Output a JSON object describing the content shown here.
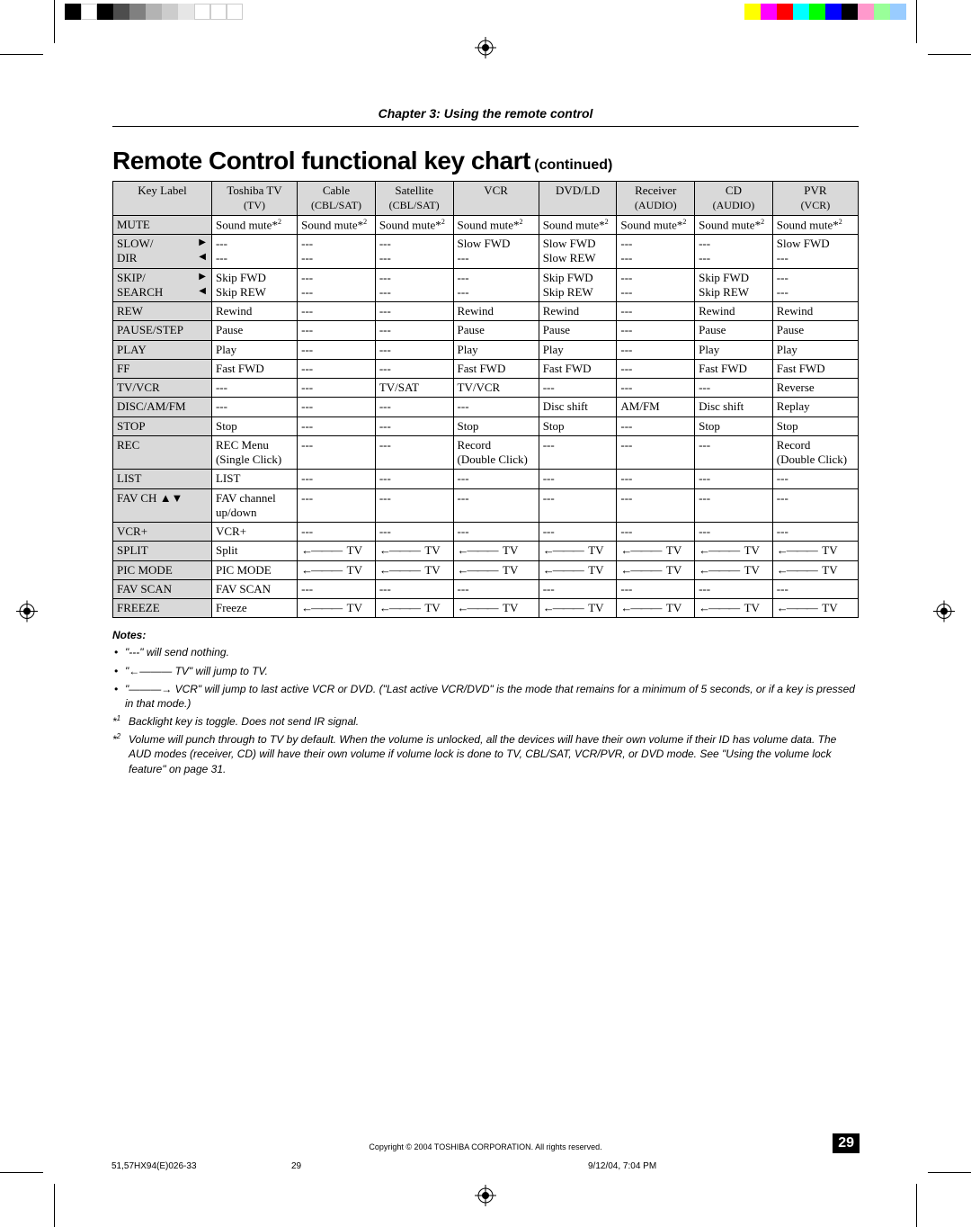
{
  "colorbar_left": [
    "#000000",
    "#ffffff",
    "#000000",
    "#4d4d4d",
    "#808080",
    "#b3b3b3",
    "#cccccc",
    "#e6e6e6",
    "#ffffff",
    "#ffffff",
    "#ffffff"
  ],
  "colorbar_right": [
    "#ffffff",
    "#ffff00",
    "#ff00ff",
    "#ff0000",
    "#00ffff",
    "#00ff00",
    "#0000ff",
    "#000000",
    "#ff99cc",
    "#99ff99",
    "#99ccff"
  ],
  "chapter": "Chapter 3: Using the remote control",
  "title_main": "Remote Control functional key chart",
  "title_cont": "(continued)",
  "table": {
    "key_header": "Key Label",
    "devices": [
      {
        "name": "Toshiba TV",
        "sub": "(TV)"
      },
      {
        "name": "Cable",
        "sub": "(CBL/SAT)"
      },
      {
        "name": "Satellite",
        "sub": "(CBL/SAT)"
      },
      {
        "name": "VCR",
        "sub": ""
      },
      {
        "name": "DVD/LD",
        "sub": ""
      },
      {
        "name": "Receiver",
        "sub": "(AUDIO)"
      },
      {
        "name": "CD",
        "sub": "(AUDIO)"
      },
      {
        "name": "PVR",
        "sub": "(VCR)"
      }
    ],
    "rows": [
      {
        "key": "MUTE",
        "cells": [
          "Sound mute*²",
          "Sound mute*²",
          "Sound mute*²",
          "Sound mute*²",
          "Sound mute*²",
          "Sound mute*²",
          "Sound mute*²",
          "Sound mute*²"
        ]
      },
      {
        "key": "SLOW/\nDIR",
        "arrows": "rl",
        "cells": [
          "---\n---",
          "---\n---",
          "---\n---",
          "Slow FWD\n---",
          "Slow FWD\nSlow REW",
          "---\n---",
          "---\n---",
          "Slow FWD\n---"
        ]
      },
      {
        "key": "SKIP/\nSEARCH",
        "arrows": "rl",
        "cells": [
          "Skip FWD\nSkip REW",
          "---\n---",
          "---\n---",
          "---\n---",
          "Skip FWD\nSkip REW",
          "---\n---",
          "Skip FWD\nSkip REW",
          "---\n---"
        ]
      },
      {
        "key": "REW",
        "cells": [
          "Rewind",
          "---",
          "---",
          "Rewind",
          "Rewind",
          "---",
          "Rewind",
          "Rewind"
        ]
      },
      {
        "key": "PAUSE/STEP",
        "cells": [
          "Pause",
          "---",
          "---",
          "Pause",
          "Pause",
          "---",
          "Pause",
          "Pause"
        ]
      },
      {
        "key": "PLAY",
        "cells": [
          "Play",
          "---",
          "---",
          "Play",
          "Play",
          "---",
          "Play",
          "Play"
        ]
      },
      {
        "key": "FF",
        "cells": [
          "Fast FWD",
          "---",
          "---",
          "Fast FWD",
          "Fast FWD",
          "---",
          "Fast FWD",
          "Fast FWD"
        ]
      },
      {
        "key": "TV/VCR",
        "cells": [
          "---",
          "---",
          "TV/SAT",
          "TV/VCR",
          "---",
          "---",
          "---",
          "Reverse"
        ]
      },
      {
        "key": "DISC/AM/FM",
        "cells": [
          "---",
          "---",
          "---",
          "---",
          "Disc shift",
          "AM/FM",
          "Disc shift",
          "Replay"
        ]
      },
      {
        "key": "STOP",
        "cells": [
          "Stop",
          "---",
          "---",
          "Stop",
          "Stop",
          "---",
          "Stop",
          "Stop"
        ]
      },
      {
        "key": "REC",
        "cells": [
          "REC Menu\n(Single Click)",
          "---",
          "---",
          "Record\n(Double Click)",
          "---",
          "---",
          "---",
          "Record\n(Double Click)"
        ]
      },
      {
        "key": "LIST",
        "cells": [
          "LIST",
          "---",
          "---",
          "---",
          "---",
          "---",
          "---",
          "---"
        ]
      },
      {
        "key": "FAV CH ▲▼",
        "cells": [
          "FAV channel up/down",
          "---",
          "---",
          "---",
          "---",
          "---",
          "---",
          "---"
        ]
      },
      {
        "key": "VCR+",
        "cells": [
          "VCR+",
          "---",
          "---",
          "---",
          "---",
          "---",
          "---",
          "---"
        ]
      },
      {
        "key": "SPLIT",
        "cells": [
          "Split",
          "←——— TV",
          "←——— TV",
          "←——— TV",
          "←——— TV",
          "←——— TV",
          "←——— TV",
          "←——— TV"
        ]
      },
      {
        "key": "PIC MODE",
        "cells": [
          "PIC MODE",
          "←——— TV",
          "←——— TV",
          "←——— TV",
          "←——— TV",
          "←——— TV",
          "←——— TV",
          "←——— TV"
        ]
      },
      {
        "key": "FAV SCAN",
        "cells": [
          "FAV SCAN",
          "---",
          "---",
          "---",
          "---",
          "---",
          "---",
          "---"
        ]
      },
      {
        "key": "FREEZE",
        "cells": [
          "Freeze",
          "←——— TV",
          "←——— TV",
          "←——— TV",
          "←——— TV",
          "←——— TV",
          "←——— TV",
          "←——— TV"
        ]
      }
    ]
  },
  "notes_header": "Notes:",
  "notes": [
    "\"---\" will send nothing.",
    "\"←——— TV\" will jump to TV.",
    "\"———→ VCR\" will jump to last active VCR or DVD. (\"Last active VCR/DVD\" is the mode that remains for a minimum of 5 seconds, or if a key is pressed in that mode.)"
  ],
  "starnotes": [
    {
      "mark": "*¹",
      "text": "Backlight key is toggle. Does not send IR signal."
    },
    {
      "mark": "*²",
      "text": "Volume will punch through to TV by default. When the volume is unlocked, all the devices will have their own volume if their ID has volume data. The AUD modes (receiver, CD) will have their own volume if volume lock is done to TV, CBL/SAT, VCR/PVR, or DVD mode. See \"Using the volume lock feature\" on page 31."
    }
  ],
  "copyright": "Copyright © 2004 TOSHIBA CORPORATION. All rights reserved.",
  "page_number": "29",
  "print_filename": "51,57HX94(E)026-33",
  "print_page": "29",
  "print_datetime": "9/12/04, 7:04 PM"
}
